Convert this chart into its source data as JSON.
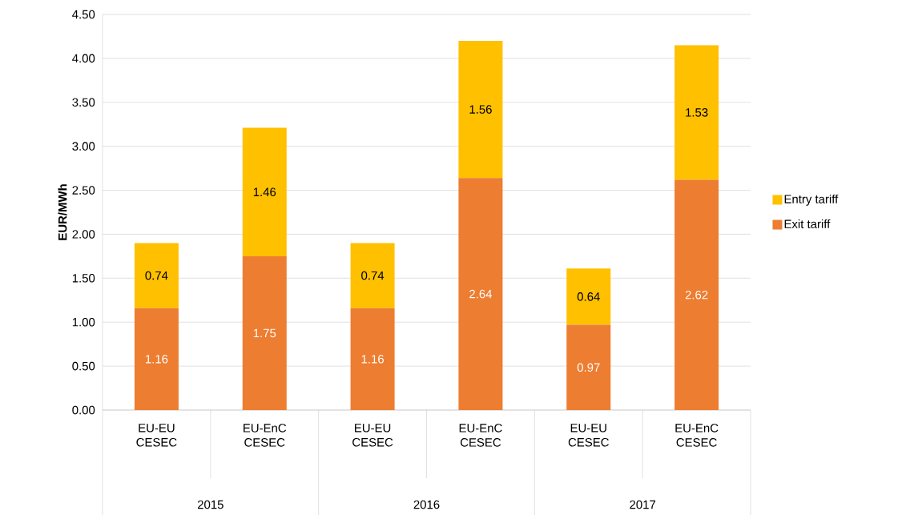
{
  "chart_data": {
    "type": "bar",
    "stacked": true,
    "ylabel": "EUR/MWh",
    "categories": [
      "EU-EU CESEC",
      "EU-EnC CESEC",
      "EU-EU CESEC",
      "EU-EnC CESEC",
      "EU-EU CESEC",
      "EU-EnC CESEC"
    ],
    "series": [
      {
        "name": "Exit tariff",
        "color": "#ed7d31",
        "values": [
          1.16,
          1.75,
          1.16,
          2.64,
          0.97,
          2.62
        ]
      },
      {
        "name": "Entry tariff",
        "color": "#ffc000",
        "values": [
          0.74,
          1.46,
          0.74,
          1.56,
          0.64,
          1.53
        ]
      }
    ],
    "annotations": [
      "2015",
      "2016",
      "2017"
    ],
    "ylim": [
      0,
      4.5
    ],
    "yticks": [
      {
        "value": 0,
        "label": "0.00"
      },
      {
        "value": 0.5,
        "label": "0.50"
      },
      {
        "value": 1,
        "label": "1.00"
      },
      {
        "value": 1.5,
        "label": "1.50"
      },
      {
        "value": 2,
        "label": "2.00"
      },
      {
        "value": 2.5,
        "label": "2.50"
      },
      {
        "value": 3,
        "label": "3.00"
      },
      {
        "value": 3.5,
        "label": "3.50"
      },
      {
        "value": 4,
        "label": "4.00"
      },
      {
        "value": 4.5,
        "label": "4.50"
      }
    ],
    "grid": "y",
    "legend": "right",
    "data_labels": true
  }
}
